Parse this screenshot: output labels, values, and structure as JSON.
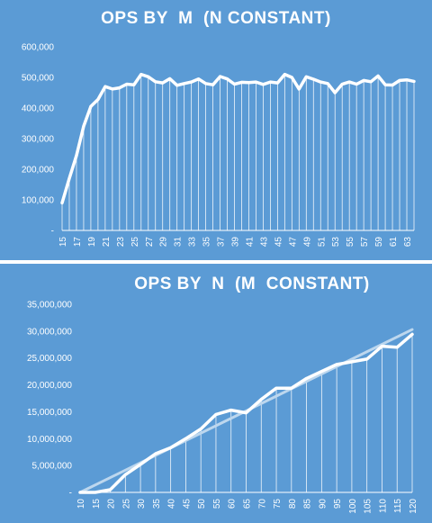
{
  "colors": {
    "background": "#5b9bd5",
    "line": "#ffffff",
    "trend": "#bdd7ee",
    "divider": "#ffffff"
  },
  "chart_data": [
    {
      "type": "line",
      "title": "OPS BY  M  (N CONSTANT)",
      "xlabel": "",
      "ylabel": "",
      "x": [
        15,
        16,
        17,
        18,
        19,
        20,
        21,
        22,
        23,
        24,
        25,
        26,
        27,
        28,
        29,
        30,
        31,
        32,
        33,
        34,
        35,
        36,
        37,
        38,
        39,
        40,
        41,
        42,
        43,
        44,
        45,
        46,
        47,
        48,
        49,
        50,
        51,
        52,
        53,
        54,
        55,
        56,
        57,
        58,
        59,
        60,
        61,
        62,
        63,
        64
      ],
      "x_tick_labels": [
        "15",
        "17",
        "19",
        "21",
        "23",
        "25",
        "27",
        "29",
        "31",
        "33",
        "35",
        "37",
        "39",
        "41",
        "43",
        "45",
        "47",
        "49",
        "51",
        "53",
        "55",
        "57",
        "59",
        "61",
        "63"
      ],
      "series": [
        {
          "values": [
            90000,
            170000,
            245000,
            340000,
            405000,
            428000,
            470000,
            462000,
            466000,
            478000,
            476000,
            510000,
            502000,
            486000,
            482000,
            496000,
            474000,
            480000,
            485000,
            495000,
            480000,
            476000,
            503000,
            495000,
            478000,
            484000,
            483000,
            485000,
            477000,
            485000,
            482000,
            510000,
            500000,
            462000,
            502000,
            494000,
            485000,
            480000,
            450000,
            478000,
            485000,
            478000,
            490000,
            486000,
            505000,
            476000,
            475000,
            490000,
            492000,
            487000
          ]
        }
      ],
      "ylim": [
        0,
        600000
      ],
      "y_tick_labels": [
        "-",
        "100,000",
        "200,000",
        "300,000",
        "400,000",
        "500,000",
        "600,000"
      ],
      "vertical_gridlines": true,
      "legend": "none"
    },
    {
      "type": "line",
      "title": "OPS BY  N  (M  CONSTANT)",
      "xlabel": "",
      "ylabel": "",
      "x": [
        10,
        15,
        20,
        25,
        30,
        35,
        40,
        45,
        50,
        55,
        60,
        65,
        70,
        75,
        80,
        85,
        90,
        95,
        100,
        105,
        110,
        115,
        120
      ],
      "x_tick_labels": [
        "10",
        "15",
        "20",
        "25",
        "30",
        "35",
        "40",
        "45",
        "50",
        "55",
        "60",
        "65",
        "70",
        "75",
        "80",
        "85",
        "90",
        "95",
        "100",
        "105",
        "110",
        "115",
        "120"
      ],
      "series": [
        {
          "values": [
            0,
            0,
            500000,
            3300000,
            5200000,
            7200000,
            8300000,
            10000000,
            11800000,
            14500000,
            15300000,
            14800000,
            17300000,
            19400000,
            19400000,
            21200000,
            22500000,
            23800000,
            24300000,
            24800000,
            27200000,
            27000000,
            29400000
          ]
        }
      ],
      "trendline": {
        "type": "linear",
        "start": [
          10,
          0
        ],
        "end": [
          120,
          30300000
        ]
      },
      "ylim": [
        0,
        35000000
      ],
      "y_tick_labels": [
        "-",
        "5,000,000",
        "10,000,000",
        "15,000,000",
        "20,000,000",
        "25,000,000",
        "30,000,000",
        "35,000,000"
      ],
      "vertical_gridlines": true,
      "legend": "none"
    }
  ]
}
